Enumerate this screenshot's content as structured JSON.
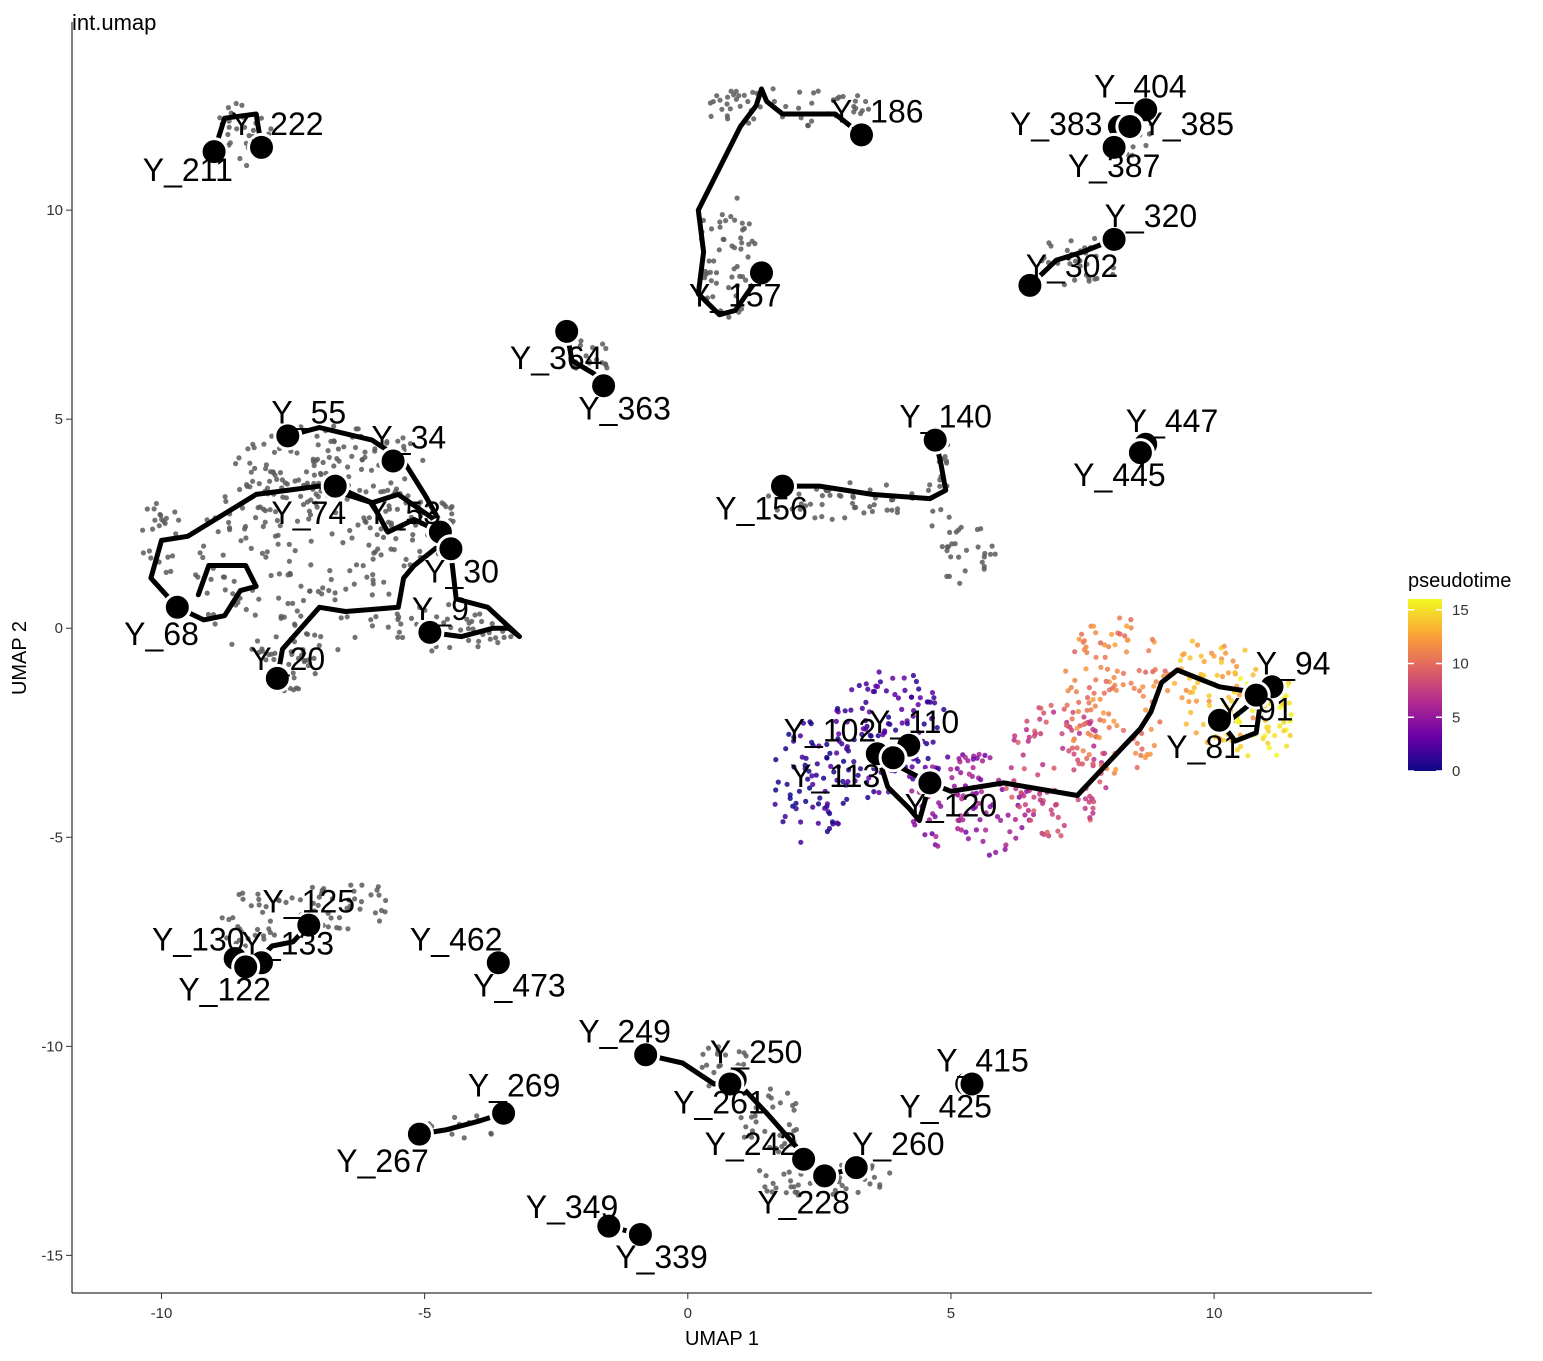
{
  "chart_data": {
    "type": "scatter",
    "title": "int.umap",
    "xlabel": "UMAP 1",
    "ylabel": "UMAP 2",
    "xlim": [
      -11.7,
      13.0
    ],
    "ylim": [
      -15.9,
      14.5
    ],
    "x_ticks": [
      -10,
      -5,
      0,
      5,
      10
    ],
    "y_ticks": [
      -15,
      -10,
      -5,
      0,
      5,
      10
    ],
    "x_tick_labels": [
      "-10",
      "-5",
      "0",
      "5",
      "10"
    ],
    "y_tick_labels": [
      "-15",
      "-10",
      "-5",
      "0",
      "5",
      "10"
    ],
    "grid": false,
    "legend": {
      "title": "pseudotime",
      "placement": "right",
      "min": 0,
      "max": 16,
      "ticks": [
        0,
        5,
        10,
        15
      ],
      "tick_labels": [
        "0",
        "5",
        "10",
        "15"
      ]
    },
    "colors": {
      "cell_grey": "#5a5a5a",
      "trajectory": "#000000",
      "node_fill": "#000000",
      "node_stroke": "#ffffff"
    },
    "colormap": [
      "#0d0887",
      "#6a00a8",
      "#b12a90",
      "#e16462",
      "#fca636",
      "#f0f921"
    ],
    "point_clouds": [
      {
        "x": [
          -10.4,
          -9.6
        ],
        "y": [
          1.2,
          3.1
        ],
        "pseudotime": null
      },
      {
        "x": [
          -9.4,
          -5.6
        ],
        "y": [
          -0.9,
          3.8
        ],
        "pseudotime": null
      },
      {
        "x": [
          -8.6,
          -5.0
        ],
        "y": [
          3.0,
          4.9
        ],
        "pseudotime": null
      },
      {
        "x": [
          -6.2,
          -4.3
        ],
        "y": [
          1.4,
          3.4
        ],
        "pseudotime": null
      },
      {
        "x": [
          -5.8,
          -3.2
        ],
        "y": [
          -0.6,
          0.6
        ],
        "pseudotime": null
      },
      {
        "x": [
          -8.1,
          -7.0
        ],
        "y": [
          -1.6,
          -0.3
        ],
        "pseudotime": null
      },
      {
        "x": [
          -9.0,
          -7.9
        ],
        "y": [
          11.0,
          12.6
        ],
        "pseudotime": null
      },
      {
        "x": [
          0.1,
          3.6
        ],
        "y": [
          12.0,
          13.0
        ],
        "pseudotime": null
      },
      {
        "x": [
          0.2,
          1.3
        ],
        "y": [
          7.3,
          10.5
        ],
        "pseudotime": null
      },
      {
        "x": [
          8.0,
          8.9
        ],
        "y": [
          11.3,
          12.5
        ],
        "pseudotime": null
      },
      {
        "x": [
          6.6,
          8.2
        ],
        "y": [
          8.1,
          9.4
        ],
        "pseudotime": null
      },
      {
        "x": [
          -2.3,
          -1.5
        ],
        "y": [
          5.8,
          7.1
        ],
        "pseudotime": null
      },
      {
        "x": [
          1.4,
          4.5
        ],
        "y": [
          2.6,
          3.5
        ],
        "pseudotime": null
      },
      {
        "x": [
          4.5,
          5.1
        ],
        "y": [
          2.2,
          4.6
        ],
        "pseudotime": null
      },
      {
        "x": [
          4.7,
          5.9
        ],
        "y": [
          1.0,
          2.5
        ],
        "pseudotime": null
      },
      {
        "x": [
          8.6,
          8.8
        ],
        "y": [
          4.1,
          4.4
        ],
        "pseudotime": null
      },
      {
        "x": [
          1.6,
          3.1
        ],
        "y": [
          -5.2,
          -2.2
        ],
        "pseudotime": 1
      },
      {
        "x": [
          2.7,
          5.0
        ],
        "y": [
          -4.2,
          -1.0
        ],
        "pseudotime": 2
      },
      {
        "x": [
          4.2,
          6.6
        ],
        "y": [
          -5.5,
          -3.0
        ],
        "pseudotime": 5
      },
      {
        "x": [
          6.0,
          8.0
        ],
        "y": [
          -5.0,
          -1.8
        ],
        "pseudotime": 8
      },
      {
        "x": [
          7.1,
          9.2
        ],
        "y": [
          -3.5,
          0.3
        ],
        "pseudotime": 11
      },
      {
        "x": [
          9.2,
          10.9
        ],
        "y": [
          -2.8,
          0.0
        ],
        "pseudotime": 13
      },
      {
        "x": [
          10.1,
          11.6
        ],
        "y": [
          -3.2,
          -0.9
        ],
        "pseudotime": 15
      },
      {
        "x": [
          -8.9,
          -7.8
        ],
        "y": [
          -8.4,
          -6.3
        ],
        "pseudotime": null
      },
      {
        "x": [
          -7.8,
          -5.5
        ],
        "y": [
          -7.2,
          -6.0
        ],
        "pseudotime": null
      },
      {
        "x": [
          -5.0,
          -3.5
        ],
        "y": [
          -12.2,
          -11.6
        ],
        "pseudotime": null
      },
      {
        "x": [
          0.2,
          1.2
        ],
        "y": [
          -11.2,
          -9.8
        ],
        "pseudotime": null
      },
      {
        "x": [
          1.0,
          2.2
        ],
        "y": [
          -12.6,
          -11.0
        ],
        "pseudotime": null
      },
      {
        "x": [
          1.0,
          3.9
        ],
        "y": [
          -13.6,
          -12.6
        ],
        "pseudotime": null
      }
    ],
    "trajectories": [
      {
        "x": [
          -9.7,
          -10.2,
          -10.0,
          -9.5,
          -8.2,
          -7.0,
          -6.0,
          -5.5,
          -4.7,
          -4.5
        ],
        "y": [
          0.5,
          1.2,
          2.1,
          2.2,
          3.2,
          3.4,
          3.0,
          3.2,
          2.5,
          2.0
        ]
      },
      {
        "x": [
          -9.7,
          -9.2,
          -8.8,
          -8.5,
          -8.2,
          -8.4,
          -9.1,
          -9.3
        ],
        "y": [
          0.5,
          0.2,
          0.3,
          0.9,
          1.0,
          1.5,
          1.5,
          0.8
        ]
      },
      {
        "x": [
          -7.6,
          -7.0,
          -6.0,
          -5.4,
          -5.0,
          -4.6
        ],
        "y": [
          4.6,
          4.8,
          4.5,
          4.0,
          3.2,
          2.3
        ]
      },
      {
        "x": [
          -6.7,
          -6.0,
          -5.7,
          -5.2,
          -4.7
        ],
        "y": [
          3.4,
          3.0,
          2.3,
          2.6,
          2.3
        ]
      },
      {
        "x": [
          -7.8,
          -7.7,
          -7.0,
          -6.5,
          -5.5,
          -5.4,
          -5.2,
          -4.7
        ],
        "y": [
          -1.2,
          -0.5,
          0.5,
          0.4,
          0.5,
          1.2,
          1.5,
          2.0
        ]
      },
      {
        "x": [
          -4.9,
          -4.3,
          -3.7,
          -3.4,
          -3.2,
          -3.8,
          -4.4,
          -4.5
        ],
        "y": [
          -0.1,
          -0.2,
          0.0,
          0.0,
          -0.2,
          0.5,
          0.7,
          1.8
        ]
      },
      {
        "x": [
          -9.0,
          -8.8,
          -8.2,
          -8.1
        ],
        "y": [
          11.4,
          12.2,
          12.3,
          11.5
        ]
      },
      {
        "x": [
          3.3,
          2.8,
          2.3,
          1.8,
          1.5,
          1.4,
          1.3,
          1.0,
          0.6,
          0.2,
          0.3,
          0.2,
          0.6,
          0.9,
          1.4
        ],
        "y": [
          11.8,
          12.3,
          12.3,
          12.3,
          12.6,
          12.9,
          12.5,
          12.0,
          11.0,
          10.0,
          9.0,
          8.0,
          7.5,
          7.6,
          8.5
        ]
      },
      {
        "x": [
          8.7,
          8.4,
          8.0
        ],
        "y": [
          12.4,
          12.0,
          11.5
        ]
      },
      {
        "x": [
          6.5,
          7.0,
          7.5,
          8.1
        ],
        "y": [
          8.2,
          8.8,
          9.0,
          9.3
        ]
      },
      {
        "x": [
          -2.3,
          -2.2,
          -1.8,
          -1.5
        ],
        "y": [
          7.1,
          6.4,
          6.1,
          5.8
        ]
      },
      {
        "x": [
          1.8,
          2.5,
          3.5,
          4.6,
          4.9,
          4.8,
          4.7
        ],
        "y": [
          3.4,
          3.4,
          3.2,
          3.1,
          3.3,
          4.0,
          4.5
        ]
      },
      {
        "x": [
          3.6,
          4.0,
          4.6,
          5.0,
          6.0,
          7.4,
          8.0,
          8.6,
          8.8,
          9.0,
          9.3,
          9.5,
          10.1,
          10.6,
          10.9,
          11.1
        ],
        "y": [
          -3.0,
          -3.3,
          -3.7,
          -3.9,
          -3.7,
          -4.0,
          -3.2,
          -2.4,
          -2.0,
          -1.3,
          -1.0,
          -1.1,
          -1.4,
          -1.5,
          -1.6,
          -1.4
        ]
      },
      {
        "x": [
          3.6,
          3.8,
          4.2,
          4.4,
          4.6
        ],
        "y": [
          -3.0,
          -3.8,
          -4.3,
          -4.6,
          -3.7
        ]
      },
      {
        "x": [
          10.1,
          10.4,
          10.8,
          10.9,
          10.5,
          10.3
        ],
        "y": [
          -2.2,
          -2.7,
          -2.5,
          -1.6,
          -2.0,
          -2.2
        ]
      },
      {
        "x": [
          -8.6,
          -8.2,
          -7.9,
          -7.5,
          -7.2
        ],
        "y": [
          -7.9,
          -8.0,
          -7.6,
          -7.5,
          -7.1
        ]
      },
      {
        "x": [
          -5.1,
          -4.6,
          -4.0,
          -3.5
        ],
        "y": [
          -12.1,
          -12.0,
          -11.8,
          -11.6
        ]
      },
      {
        "x": [
          -0.8,
          -0.1,
          0.5,
          0.9,
          1.5,
          2.2,
          2.6,
          3.2
        ],
        "y": [
          -10.2,
          -10.4,
          -10.9,
          -10.8,
          -11.6,
          -12.6,
          -13.1,
          -12.9
        ]
      },
      {
        "x": [
          5.3,
          5.4
        ],
        "y": [
          -10.9,
          -10.7
        ]
      },
      {
        "x": [
          -1.5,
          -0.9
        ],
        "y": [
          -14.3,
          -14.5
        ]
      }
    ],
    "nodes": [
      {
        "label": "Y_222",
        "x": -8.1,
        "y": 11.5
      },
      {
        "label": "Y_211",
        "x": -9.0,
        "y": 11.4
      },
      {
        "label": "Y_186",
        "x": 3.3,
        "y": 11.8
      },
      {
        "label": "Y_157",
        "x": 1.4,
        "y": 8.5
      },
      {
        "label": "Y_404",
        "x": 8.7,
        "y": 12.4
      },
      {
        "label": "Y_383",
        "x": 8.2,
        "y": 12.0
      },
      {
        "label": "Y_385",
        "x": 8.4,
        "y": 12.0
      },
      {
        "label": "Y_387",
        "x": 8.1,
        "y": 11.5
      },
      {
        "label": "Y_320",
        "x": 8.1,
        "y": 9.3
      },
      {
        "label": "Y_302",
        "x": 6.5,
        "y": 8.2
      },
      {
        "label": "Y_364",
        "x": -2.3,
        "y": 7.1
      },
      {
        "label": "Y_363",
        "x": -1.6,
        "y": 5.8
      },
      {
        "label": "Y_55",
        "x": -7.6,
        "y": 4.6
      },
      {
        "label": "Y_34",
        "x": -5.6,
        "y": 4.0
      },
      {
        "label": "Y_74",
        "x": -6.7,
        "y": 3.4
      },
      {
        "label": "Y_53",
        "x": -4.7,
        "y": 2.3
      },
      {
        "label": "Y_30",
        "x": -4.5,
        "y": 1.9
      },
      {
        "label": "Y_68",
        "x": -9.7,
        "y": 0.5
      },
      {
        "label": "Y_9",
        "x": -4.9,
        "y": -0.1
      },
      {
        "label": "Y_20",
        "x": -7.8,
        "y": -1.2
      },
      {
        "label": "Y_140",
        "x": 4.7,
        "y": 4.5
      },
      {
        "label": "Y_156",
        "x": 1.8,
        "y": 3.4
      },
      {
        "label": "Y_447",
        "x": 8.7,
        "y": 4.4
      },
      {
        "label": "Y_445",
        "x": 8.6,
        "y": 4.2
      },
      {
        "label": "Y_94",
        "x": 11.1,
        "y": -1.4
      },
      {
        "label": "Y_91",
        "x": 10.8,
        "y": -1.6
      },
      {
        "label": "Y_81",
        "x": 10.1,
        "y": -2.2
      },
      {
        "label": "Y_102",
        "x": 3.6,
        "y": -3.0
      },
      {
        "label": "Y_110",
        "x": 4.2,
        "y": -2.8
      },
      {
        "label": "Y_113",
        "x": 3.9,
        "y": -3.1
      },
      {
        "label": "Y_120",
        "x": 4.6,
        "y": -3.7
      },
      {
        "label": "Y_125",
        "x": -7.2,
        "y": -7.1
      },
      {
        "label": "Y_130",
        "x": -8.6,
        "y": -7.9
      },
      {
        "label": "Y_133",
        "x": -8.1,
        "y": -8.0
      },
      {
        "label": "Y_122",
        "x": -8.4,
        "y": -8.1
      },
      {
        "label": "Y_462",
        "x": -3.6,
        "y": -8.0
      },
      {
        "label": "Y_473",
        "x": -3.6,
        "y": -8.0
      },
      {
        "label": "Y_249",
        "x": -0.8,
        "y": -10.2
      },
      {
        "label": "Y_250",
        "x": 0.9,
        "y": -10.8
      },
      {
        "label": "Y_261",
        "x": 0.8,
        "y": -10.9
      },
      {
        "label": "Y_415",
        "x": 5.3,
        "y": -10.9
      },
      {
        "label": "Y_425",
        "x": 5.4,
        "y": -10.9
      },
      {
        "label": "Y_269",
        "x": -3.5,
        "y": -11.6
      },
      {
        "label": "Y_267",
        "x": -5.1,
        "y": -12.1
      },
      {
        "label": "Y_242",
        "x": 2.2,
        "y": -12.7
      },
      {
        "label": "Y_260",
        "x": 3.2,
        "y": -12.9
      },
      {
        "label": "Y_228",
        "x": 2.6,
        "y": -13.1
      },
      {
        "label": "Y_349",
        "x": -1.5,
        "y": -14.3
      },
      {
        "label": "Y_339",
        "x": -0.9,
        "y": -14.5
      }
    ],
    "node_labels": [
      {
        "text": "Y_222",
        "x": -7.8,
        "y": 12.0
      },
      {
        "text": "Y_211",
        "x": -9.5,
        "y": 10.9
      },
      {
        "text": "Y_186",
        "x": 3.6,
        "y": 12.3
      },
      {
        "text": "Y_157",
        "x": 0.9,
        "y": 7.9
      },
      {
        "text": "Y_404",
        "x": 8.6,
        "y": 12.9
      },
      {
        "text": "Y_383",
        "x": 7.0,
        "y": 12.0
      },
      {
        "text": "Y_385",
        "x": 9.5,
        "y": 12.0
      },
      {
        "text": "Y_387",
        "x": 8.1,
        "y": 11.0
      },
      {
        "text": "Y_320",
        "x": 8.8,
        "y": 9.8
      },
      {
        "text": "Y_302",
        "x": 7.3,
        "y": 8.6
      },
      {
        "text": "Y_364",
        "x": -2.5,
        "y": 6.4
      },
      {
        "text": "Y_363",
        "x": -1.2,
        "y": 5.2
      },
      {
        "text": "Y_55",
        "x": -7.2,
        "y": 5.1
      },
      {
        "text": "Y_34",
        "x": -5.3,
        "y": 4.5
      },
      {
        "text": "Y_74",
        "x": -7.2,
        "y": 2.7
      },
      {
        "text": "Y_53",
        "x": -5.4,
        "y": 2.7
      },
      {
        "text": "Y_30",
        "x": -4.3,
        "y": 1.3
      },
      {
        "text": "Y_68",
        "x": -10.0,
        "y": -0.2
      },
      {
        "text": "Y_9",
        "x": -4.7,
        "y": 0.4
      },
      {
        "text": "Y_20",
        "x": -7.6,
        "y": -0.8
      },
      {
        "text": "Y_140",
        "x": 4.9,
        "y": 5.0
      },
      {
        "text": "Y_156",
        "x": 1.4,
        "y": 2.8
      },
      {
        "text": "Y_447",
        "x": 9.2,
        "y": 4.9
      },
      {
        "text": "Y_445",
        "x": 8.2,
        "y": 3.6
      },
      {
        "text": "Y_94",
        "x": 11.5,
        "y": -0.9
      },
      {
        "text": "Y_91",
        "x": 10.8,
        "y": -2.0
      },
      {
        "text": "Y_81",
        "x": 9.8,
        "y": -2.9
      },
      {
        "text": "Y_102",
        "x": 2.7,
        "y": -2.5
      },
      {
        "text": "Y_110",
        "x": 4.3,
        "y": -2.3
      },
      {
        "text": "Y_113",
        "x": 2.8,
        "y": -3.6
      },
      {
        "text": "Y_120",
        "x": 5.0,
        "y": -4.3
      },
      {
        "text": "Y_125",
        "x": -7.2,
        "y": -6.6
      },
      {
        "text": "Y_130",
        "x": -9.3,
        "y": -7.5
      },
      {
        "text": "Y_133",
        "x": -7.6,
        "y": -7.6
      },
      {
        "text": "Y_122",
        "x": -8.8,
        "y": -8.7
      },
      {
        "text": "Y_462",
        "x": -4.4,
        "y": -7.5
      },
      {
        "text": "Y_473",
        "x": -3.2,
        "y": -8.6
      },
      {
        "text": "Y_249",
        "x": -1.2,
        "y": -9.7
      },
      {
        "text": "Y_250",
        "x": 1.3,
        "y": -10.2
      },
      {
        "text": "Y_261",
        "x": 0.6,
        "y": -11.4
      },
      {
        "text": "Y_415",
        "x": 5.6,
        "y": -10.4
      },
      {
        "text": "Y_425",
        "x": 4.9,
        "y": -11.5
      },
      {
        "text": "Y_269",
        "x": -3.3,
        "y": -11.0
      },
      {
        "text": "Y_267",
        "x": -5.8,
        "y": -12.8
      },
      {
        "text": "Y_242",
        "x": 1.2,
        "y": -12.4
      },
      {
        "text": "Y_260",
        "x": 4.0,
        "y": -12.4
      },
      {
        "text": "Y_228",
        "x": 2.2,
        "y": -13.8
      },
      {
        "text": "Y_349",
        "x": -2.2,
        "y": -13.9
      },
      {
        "text": "Y_339",
        "x": -0.5,
        "y": -15.1
      }
    ]
  }
}
